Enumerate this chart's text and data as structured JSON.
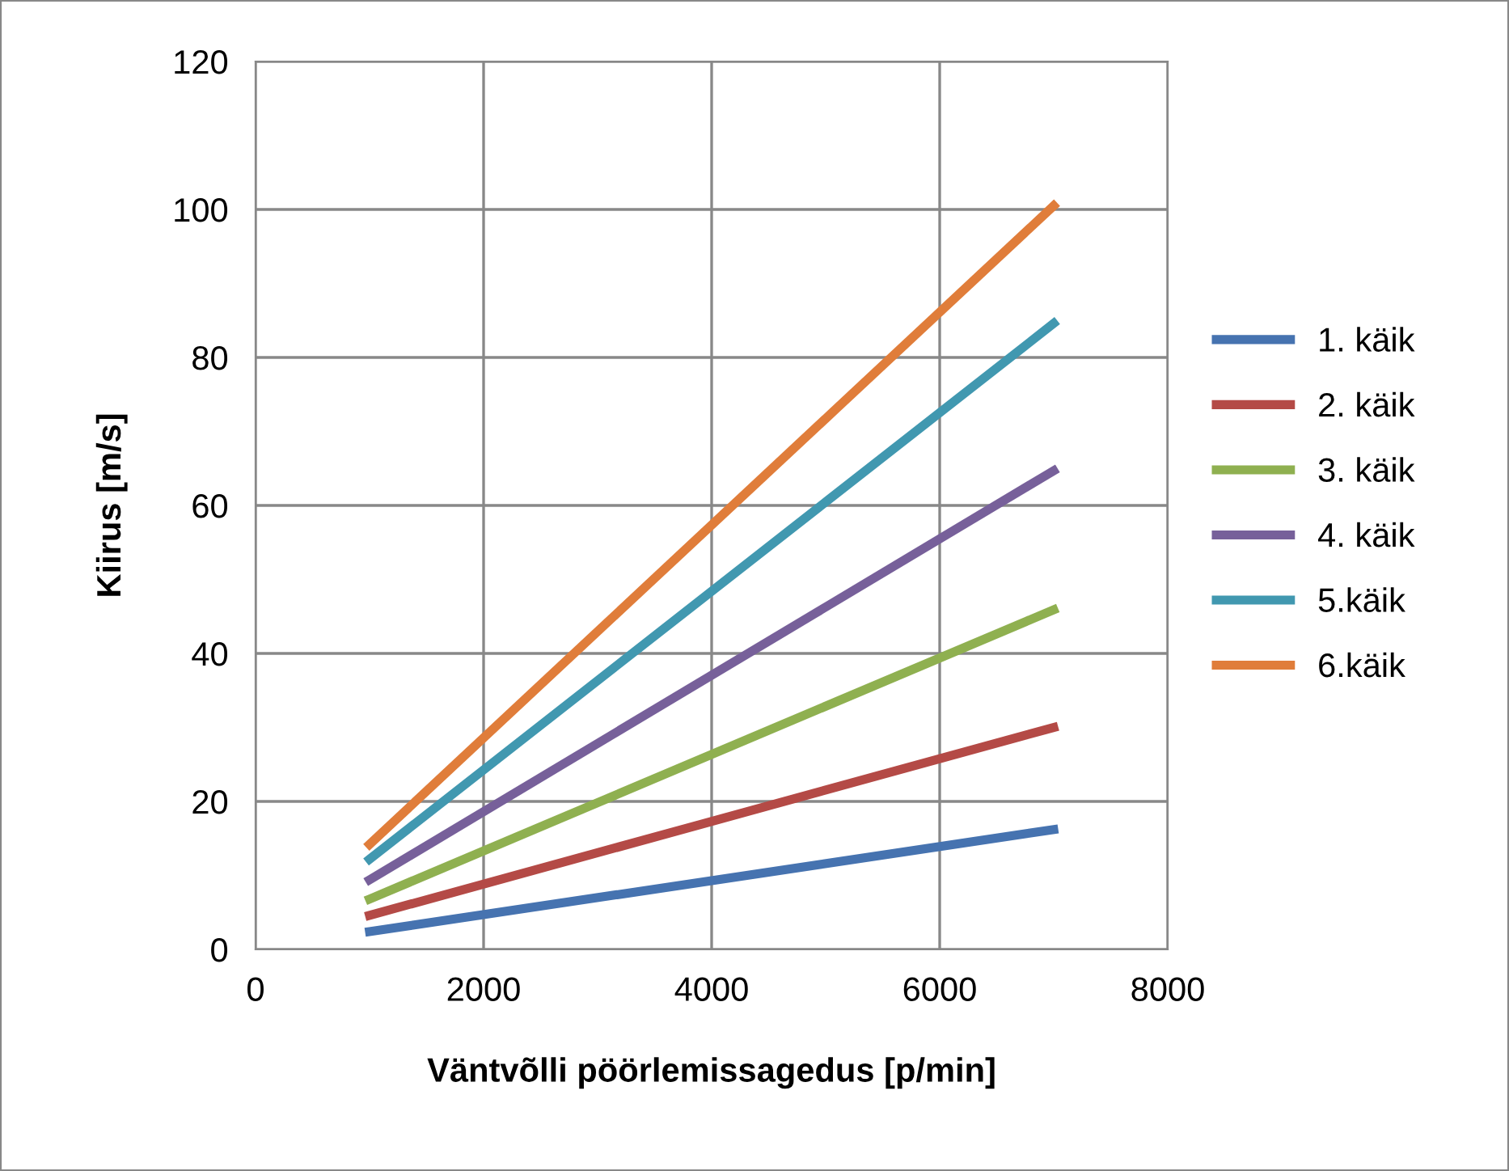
{
  "chart_data": {
    "type": "line",
    "xlabel": "Väntvõlli pöörlemissagedus [p/min]",
    "ylabel": "Kiirus [m/s]",
    "x": [
      1000,
      7000
    ],
    "series": [
      {
        "name": "1. käik",
        "color": "#4673b0",
        "values": [
          2.4,
          16.2
        ]
      },
      {
        "name": "2. käik",
        "color": "#b44a46",
        "values": [
          4.6,
          30
        ]
      },
      {
        "name": "3. käik",
        "color": "#8fb050",
        "values": [
          6.8,
          45.9
        ]
      },
      {
        "name": "4. käik",
        "color": "#77609a",
        "values": [
          9.4,
          64.7
        ]
      },
      {
        "name": "5.käik",
        "color": "#4198b0",
        "values": [
          12.2,
          84.6
        ]
      },
      {
        "name": "6.käik",
        "color": "#e07d3a",
        "values": [
          14.2,
          100.5
        ]
      }
    ],
    "xlim": [
      0,
      8000
    ],
    "xticks": [
      0,
      2000,
      4000,
      6000,
      8000
    ],
    "ylim": [
      0,
      120
    ],
    "yticks": [
      0,
      20,
      40,
      60,
      80,
      100,
      120
    ],
    "grid": true,
    "legend": "right",
    "marker": "none",
    "line_style": "solid"
  }
}
